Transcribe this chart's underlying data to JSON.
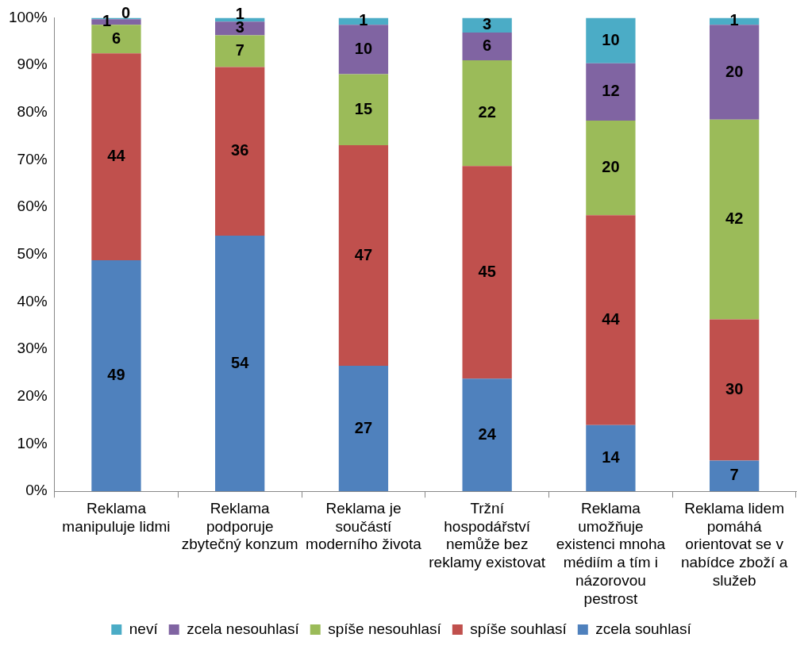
{
  "chart_data": {
    "type": "bar",
    "stacked": true,
    "categories": [
      "Reklama manipuluje lidmi",
      "Reklama podporuje zbytečný konzum",
      "Reklama je součástí moderního života",
      "Tržní hospodářství nemůže bez reklamy existovat",
      "Reklama umožňuje existenci mnoha médiím a tím i názorovou pestrost",
      "Reklama lidem pomáhá orientovat se v nabídce zboží a služeb"
    ],
    "series": [
      {
        "name": "zcela souhlasí",
        "color": "#4f81bd",
        "values": [
          48.8,
          54.0,
          26.5,
          23.8,
          14.0,
          6.5
        ],
        "value_labels": [
          "49",
          "54",
          "27",
          "24",
          "14",
          "7"
        ]
      },
      {
        "name": "spíše souhlasí",
        "color": "#c0504d",
        "values": [
          43.7,
          35.6,
          46.6,
          44.9,
          44.3,
          29.8
        ],
        "value_labels": [
          "44",
          "36",
          "47",
          "45",
          "44",
          "30"
        ]
      },
      {
        "name": "spíše nesouhlasí",
        "color": "#9bbb59",
        "values": [
          6.0,
          6.7,
          15.0,
          22.3,
          20.0,
          42.2
        ],
        "value_labels": [
          "6",
          "7",
          "15",
          "22",
          "20",
          "42"
        ]
      },
      {
        "name": "zcela nesouhlasí",
        "color": "#8064a2",
        "values": [
          1.2,
          2.9,
          10.4,
          5.9,
          12.1,
          20.0
        ],
        "value_labels": [
          "1",
          "3",
          "10",
          "6",
          "12",
          "20"
        ]
      },
      {
        "name": "neví",
        "color": "#4bacc6",
        "values": [
          0.3,
          0.8,
          1.5,
          3.1,
          9.6,
          1.5
        ],
        "value_labels": [
          "0",
          "1",
          "1",
          "3",
          "10",
          "1"
        ]
      }
    ],
    "ylim": [
      0,
      100
    ],
    "yticks": [
      {
        "value": 0,
        "label": "0%"
      },
      {
        "value": 10,
        "label": "10%"
      },
      {
        "value": 20,
        "label": "20%"
      },
      {
        "value": 30,
        "label": "30%"
      },
      {
        "value": 40,
        "label": "40%"
      },
      {
        "value": 50,
        "label": "50%"
      },
      {
        "value": 60,
        "label": "60%"
      },
      {
        "value": 70,
        "label": "70%"
      },
      {
        "value": 80,
        "label": "80%"
      },
      {
        "value": 90,
        "label": "90%"
      },
      {
        "value": 100,
        "label": "100%"
      }
    ],
    "grid": false,
    "legend": "bottom"
  }
}
